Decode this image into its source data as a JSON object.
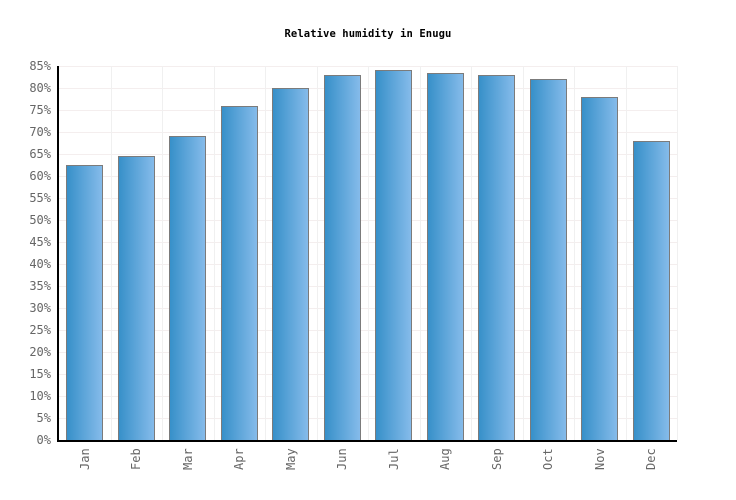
{
  "title": "Relative humidity in Enugu",
  "chart_data": {
    "type": "bar",
    "title": "Relative humidity in Enugu",
    "categories": [
      "Jan",
      "Feb",
      "Mar",
      "Apr",
      "May",
      "Jun",
      "Jul",
      "Aug",
      "Sep",
      "Oct",
      "Nov",
      "Dec"
    ],
    "values": [
      62.5,
      64.5,
      69,
      76,
      80,
      83,
      84,
      83.5,
      83,
      82,
      78,
      68
    ],
    "value_unit": "%",
    "xlabel": "",
    "ylabel": "",
    "ylim": [
      0,
      85
    ],
    "ytick_step": 5,
    "ytick_suffix": "%",
    "grid": "on",
    "legend_position": "none",
    "colors": {
      "bar_gradient_left": "#3790c9",
      "bar_gradient_right": "#85bbea",
      "bar_border": "#7b7b7b",
      "axis": "#000000",
      "hgrid": "#f4eeee",
      "vgrid": "#f0f0f0",
      "tick_label": "#666666",
      "title": "#000000",
      "background": "#ffffff"
    }
  }
}
